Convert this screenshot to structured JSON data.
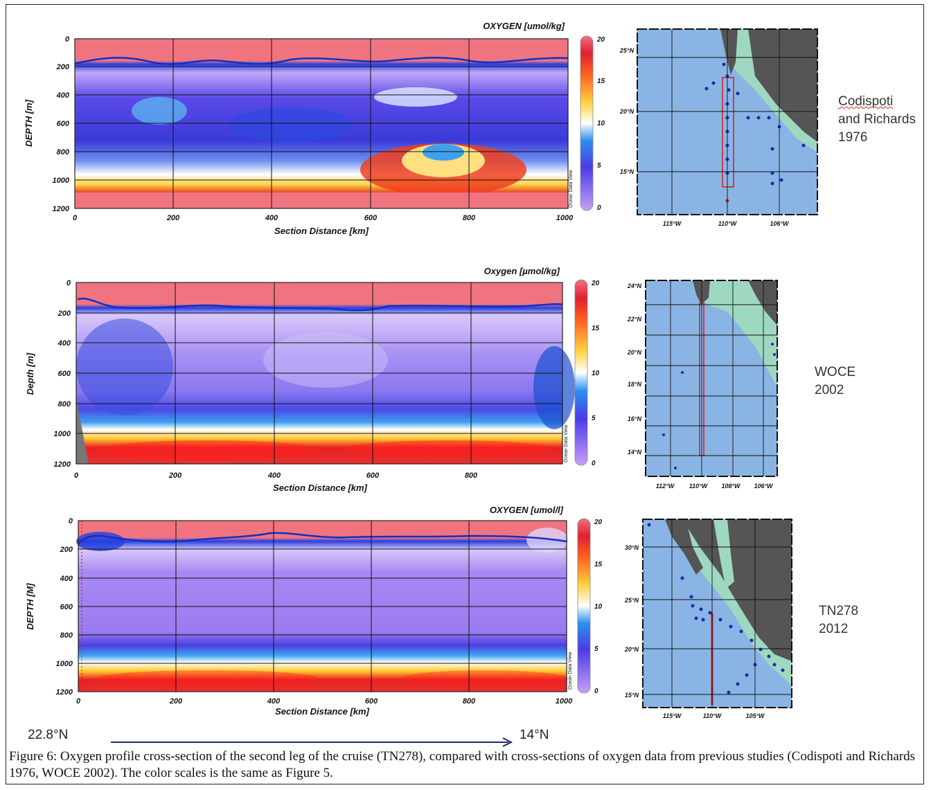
{
  "panels": [
    {
      "id": "codispoti",
      "title": "OXYGEN [umol/kg]",
      "ylabel": "DEPTH [m]",
      "xlabel": "Section Distance [km]",
      "x_ticks": [
        "0",
        "200",
        "400",
        "600",
        "800",
        "1000"
      ],
      "y_ticks": [
        "0",
        "200",
        "400",
        "600",
        "800",
        "1000",
        "1200"
      ],
      "cbar_ticks": [
        "20",
        "15",
        "10",
        "5",
        "0"
      ],
      "watermark": "Ocean Data View",
      "map_lat_labels": [
        "25°N",
        "20°N",
        "15°N"
      ],
      "map_lon_labels": [
        "115°W",
        "110°W",
        "106°W"
      ],
      "label_line1": "Codispoti",
      "label_line2": "and Richards",
      "label_line3": "1976"
    },
    {
      "id": "woce",
      "title": "Oxygen [µmol/kg]",
      "ylabel": "Depth [m]",
      "xlabel": "Section Distance [km]",
      "x_ticks": [
        "0",
        "200",
        "400",
        "600",
        "800"
      ],
      "y_ticks": [
        "0",
        "200",
        "400",
        "600",
        "800",
        "1000",
        "1200"
      ],
      "cbar_ticks": [
        "20",
        "15",
        "10",
        "5",
        "0"
      ],
      "watermark": "Ocean Data View",
      "map_lat_labels": [
        "24°N",
        "22°N",
        "20°N",
        "18°N",
        "16°N",
        "14°N"
      ],
      "map_lon_labels": [
        "112°W",
        "110°W",
        "108°W",
        "106°W"
      ],
      "label_line1": "WOCE",
      "label_line2": "2002"
    },
    {
      "id": "tn278",
      "title": "OXYGEN [umol/l]",
      "ylabel": "DEPTH [M]",
      "xlabel": "Section Distance [km]",
      "x_ticks": [
        "0",
        "200",
        "400",
        "600",
        "800",
        "1000"
      ],
      "y_ticks": [
        "0",
        "200",
        "400",
        "600",
        "800",
        "1000",
        "1200"
      ],
      "cbar_ticks": [
        "20",
        "15",
        "10",
        "5",
        "0"
      ],
      "watermark": "Ocean Data View",
      "map_lat_labels": [
        "30°N",
        "25°N",
        "20°N",
        "15°N"
      ],
      "map_lon_labels": [
        "115°W",
        "110°W",
        "105°W"
      ],
      "label_line1": "TN278",
      "label_line2": "2012"
    }
  ],
  "direction": {
    "start": "22.8°N",
    "end": "14°N"
  },
  "caption": "Figure 6: Oxygen profile cross-section of the second leg of the cruise (TN278), compared with cross-sections of oxygen data from previous studies (Codispoti and Richards 1976, WOCE 2002). The color scales is the same as Figure 5.",
  "colors": {
    "surface": "#f0707f",
    "low_oxygen": "#b89cf0",
    "mid_oxygen": "#3a50e0",
    "high_oxygen": "#e02020",
    "land": "#555555",
    "ocean": "#8ab0e0"
  }
}
